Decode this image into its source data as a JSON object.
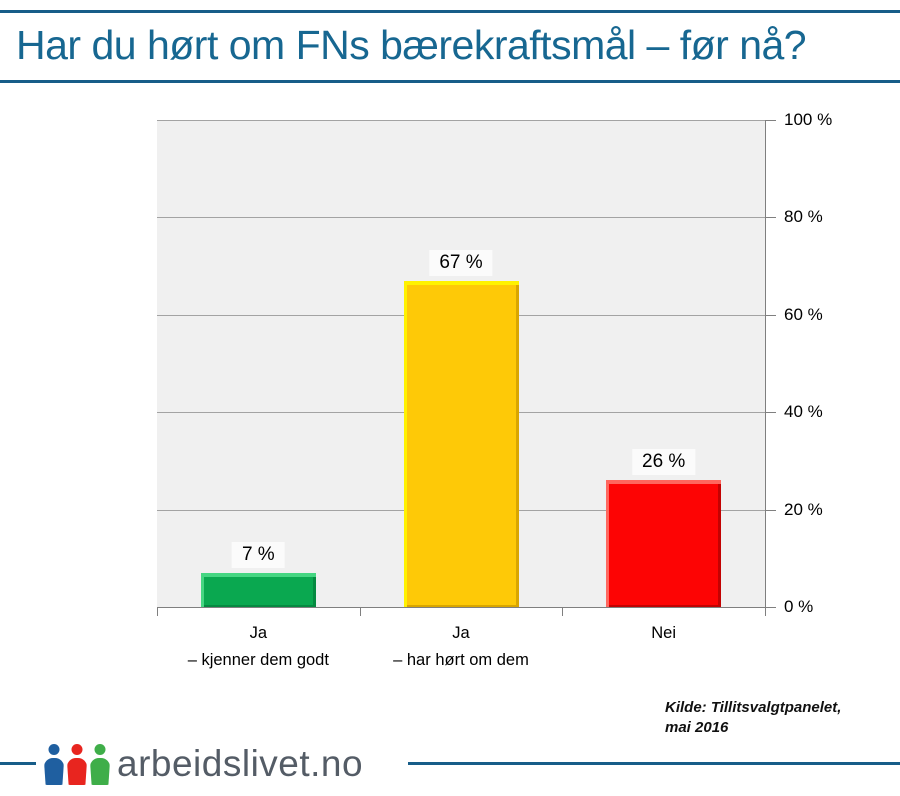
{
  "title": "Har du hørt om FNs bærekraftsmål – før nå?",
  "chart_data": {
    "type": "bar",
    "title": "Har du hørt om FNs bærekraftsmål – før nå?",
    "categories": [
      "Ja – kjenner dem godt",
      "Ja – har hørt om dem",
      "Nei"
    ],
    "category_label_lines": [
      [
        "Ja",
        "– kjenner dem godt"
      ],
      [
        "Ja",
        "– har hørt om dem"
      ],
      [
        "Nei"
      ]
    ],
    "values": [
      7,
      67,
      26
    ],
    "value_labels": [
      "7 %",
      "67 %",
      "26 %"
    ],
    "bar_colors": [
      "#0aa850",
      "#fec907",
      "#fd0404"
    ],
    "bar_colors_light": [
      "#45d682",
      "#fff200",
      "#ff675e"
    ],
    "bar_colors_dark": [
      "#058a41",
      "#d9a600",
      "#c30202"
    ],
    "ylim": [
      0,
      100
    ],
    "y_ticks": [
      0,
      20,
      40,
      60,
      80,
      100
    ],
    "y_tick_labels": [
      "0 %",
      "20 %",
      "40 %",
      "60 %",
      "80 %",
      "100 %"
    ],
    "xlabel": "",
    "ylabel": "",
    "grid": true,
    "legend": false,
    "axis_side": "right",
    "plot_bg": "#f0f0f0"
  },
  "source": {
    "line1": "Kilde: Tillitsvalgtpanelet,",
    "line2": "mai 2016"
  },
  "footer": {
    "brand": "arbeidslivet.no",
    "logo_person_colors": [
      "#1f5fa0",
      "#e8251f",
      "#3fae49"
    ]
  },
  "colors": {
    "title_text": "#176791",
    "rule_blue": "#175d89",
    "plot_bg": "#f0f0f0",
    "gridline": "#a3a3a3",
    "axis": "#7f7f7f",
    "value_label_bg": "#fbfbfb",
    "brand_text": "#545c66"
  }
}
